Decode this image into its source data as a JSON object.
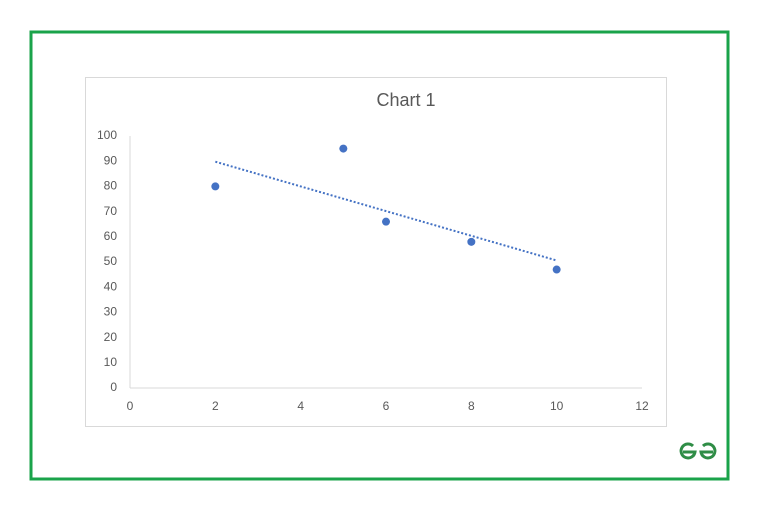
{
  "chart_data": {
    "type": "scatter",
    "title": "Chart 1",
    "series": [
      {
        "color": "#4472c4",
        "x": [
          2,
          5,
          6,
          8,
          10
        ],
        "values": [
          80,
          95,
          66,
          58,
          47
        ]
      }
    ],
    "trendline": {
      "style": "dotted",
      "color": "#4472c4",
      "x": [
        2,
        10
      ],
      "values": [
        89.8,
        50.6
      ]
    },
    "xlim": [
      0,
      12
    ],
    "xticks": [
      0,
      2,
      4,
      6,
      8,
      10,
      12
    ],
    "ylim": [
      0,
      100
    ],
    "yticks": [
      0,
      10,
      20,
      30,
      40,
      50,
      60,
      70,
      80,
      90,
      100
    ],
    "grid": false
  }
}
